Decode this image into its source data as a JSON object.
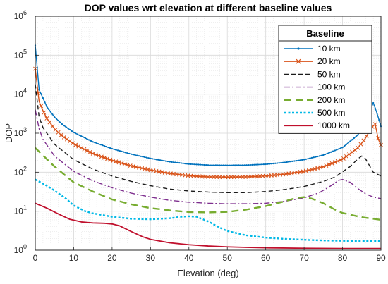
{
  "chart_data": {
    "type": "line",
    "title": "DOP values wrt elevation at different baseline values",
    "xlabel": "Elevation (deg)",
    "ylabel": "DOP",
    "xlim": [
      0,
      90
    ],
    "ylim": [
      1,
      1000000
    ],
    "yscale": "log",
    "grid": true,
    "minor_grid": true,
    "legend_title": "Baseline",
    "legend_position": "top-right",
    "x_ticks": [
      "0",
      "10",
      "20",
      "30",
      "40",
      "50",
      "60",
      "70",
      "80",
      "90"
    ],
    "y_ticks": [
      {
        "value": 1,
        "mantissa": "10",
        "exp": "0"
      },
      {
        "value": 10,
        "mantissa": "10",
        "exp": "1"
      },
      {
        "value": 100,
        "mantissa": "10",
        "exp": "2"
      },
      {
        "value": 1000,
        "mantissa": "10",
        "exp": "3"
      },
      {
        "value": 10000,
        "mantissa": "10",
        "exp": "4"
      },
      {
        "value": 100000,
        "mantissa": "10",
        "exp": "5"
      },
      {
        "value": 1000000,
        "mantissa": "10",
        "exp": "6"
      }
    ],
    "series": [
      {
        "name": "10 km",
        "color": "#0072BD",
        "style": "solid",
        "marker": "dot",
        "x": [
          0,
          1,
          2,
          3,
          5,
          7,
          10,
          15,
          20,
          25,
          30,
          35,
          40,
          45,
          50,
          55,
          60,
          65,
          70,
          75,
          80,
          84,
          86,
          88,
          89,
          90
        ],
        "y": [
          180000,
          13000,
          8000,
          4800,
          2600,
          1700,
          1050,
          600,
          400,
          290,
          225,
          185,
          162,
          152,
          150,
          152,
          160,
          178,
          210,
          275,
          430,
          900,
          2000,
          6000,
          3200,
          1500
        ]
      },
      {
        "name": "20 km",
        "color": "#D95319",
        "style": "solid",
        "marker": "x",
        "x": [
          0,
          1,
          2,
          3,
          5,
          7,
          10,
          15,
          20,
          25,
          30,
          35,
          40,
          45,
          50,
          55,
          60,
          65,
          70,
          75,
          80,
          84,
          86,
          87.5,
          88.5,
          89.3,
          90
        ],
        "y": [
          45000,
          6500,
          3800,
          2400,
          1300,
          850,
          530,
          300,
          200,
          145,
          113,
          93,
          81,
          76,
          75,
          76,
          80,
          89,
          105,
          138,
          215,
          420,
          750,
          1400,
          1700,
          700,
          500
        ]
      },
      {
        "name": "50 km",
        "color": "#1a1a1a",
        "style": "dash",
        "x": [
          0,
          1,
          2,
          5,
          10,
          15,
          20,
          25,
          30,
          35,
          40,
          45,
          50,
          55,
          60,
          65,
          70,
          75,
          78,
          82,
          84,
          85,
          86,
          88,
          90
        ],
        "y": [
          18000,
          2600,
          1400,
          520,
          210,
          120,
          80,
          58,
          45,
          37,
          33,
          31,
          30,
          30,
          32,
          36,
          43,
          58,
          75,
          140,
          220,
          260,
          220,
          100,
          80
        ]
      },
      {
        "name": "100 km",
        "color": "#7E2F8E",
        "style": "dashdot",
        "x": [
          0,
          1,
          2,
          5,
          10,
          15,
          20,
          25,
          30,
          35,
          40,
          45,
          50,
          55,
          60,
          65,
          70,
          74,
          77,
          79,
          80,
          82,
          84,
          86,
          88,
          90
        ],
        "y": [
          4000,
          1300,
          700,
          260,
          105,
          60,
          40,
          29,
          23,
          19,
          17,
          16,
          15.5,
          15.5,
          16,
          18,
          22,
          30,
          45,
          62,
          65,
          55,
          38,
          28,
          23,
          21
        ]
      },
      {
        "name": "200 km",
        "color": "#77AC30",
        "style": "longdash",
        "x": [
          0,
          2,
          5,
          10,
          15,
          20,
          25,
          30,
          35,
          40,
          45,
          50,
          55,
          60,
          65,
          68,
          70,
          72,
          75,
          78,
          80,
          85,
          90
        ],
        "y": [
          420,
          270,
          140,
          55,
          32,
          20,
          15,
          12,
          10.5,
          9.5,
          9.3,
          9.6,
          11,
          13.5,
          18,
          22,
          23,
          21,
          16,
          11,
          9,
          7,
          6
        ]
      },
      {
        "name": "500 km",
        "color": "#00B8E6",
        "style": "dot",
        "x": [
          0,
          3,
          5,
          8,
          10,
          13,
          15,
          20,
          25,
          30,
          35,
          38,
          40,
          42,
          45,
          48,
          50,
          55,
          60,
          65,
          70,
          75,
          80,
          85,
          90
        ],
        "y": [
          65,
          45,
          34,
          21,
          14,
          10,
          8.8,
          7.2,
          6.4,
          6.2,
          6.6,
          7.2,
          7.4,
          7.2,
          5.5,
          3.8,
          3.1,
          2.4,
          2.1,
          1.95,
          1.85,
          1.78,
          1.74,
          1.72,
          1.7
        ]
      },
      {
        "name": "1000 km",
        "color": "#C0102D",
        "style": "solid",
        "x": [
          0,
          3,
          6,
          9,
          12,
          15,
          18,
          20,
          22,
          25,
          28,
          30,
          35,
          40,
          45,
          50,
          55,
          60,
          70,
          80,
          90
        ],
        "y": [
          16,
          12,
          8.5,
          6.2,
          5.3,
          5.0,
          4.9,
          4.7,
          4.2,
          3.0,
          2.2,
          1.9,
          1.55,
          1.38,
          1.28,
          1.22,
          1.18,
          1.15,
          1.12,
          1.1,
          1.1
        ]
      }
    ]
  }
}
